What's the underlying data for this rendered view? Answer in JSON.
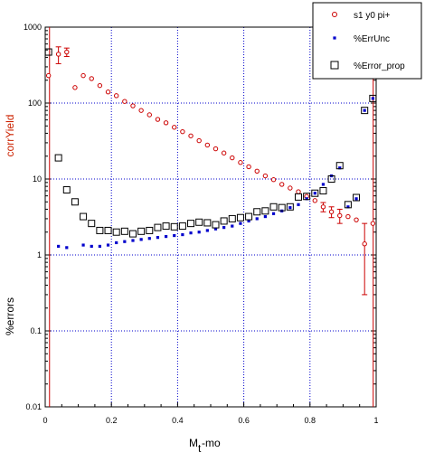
{
  "chart_data": {
    "type": "scatter",
    "xlabel": "M",
    "xlabel_sub": "t",
    "xlabel_suffix": "-mo",
    "ylabel_top": "corrYield",
    "ylabel_bottom": "%errors",
    "xlim": [
      0,
      1
    ],
    "ylim": [
      0.01,
      1000
    ],
    "yscale": "log",
    "grid": true,
    "legend_position": "top-right",
    "x_ticks": [
      "0",
      "0.2",
      "0.4",
      "0.6",
      "0.8",
      "1"
    ],
    "x_tick_values": [
      0,
      0.2,
      0.4,
      0.6,
      0.8,
      1
    ],
    "y_ticks": [
      "0.01",
      "0.1",
      "1",
      "10",
      "100",
      "1000"
    ],
    "y_tick_values": [
      0.01,
      0.1,
      1,
      10,
      100,
      1000
    ],
    "colors": {
      "grid": "#0000cc",
      "yield": "#cc0000",
      "errunc": "#0000cc",
      "errprop": "#000000"
    },
    "series": [
      {
        "name": "s1 y0 pi+",
        "marker": "open-circle",
        "color": "#cc0000",
        "x": [
          0.01,
          0.04,
          0.065,
          0.09,
          0.115,
          0.14,
          0.165,
          0.19,
          0.215,
          0.24,
          0.265,
          0.29,
          0.315,
          0.34,
          0.365,
          0.39,
          0.415,
          0.44,
          0.465,
          0.49,
          0.515,
          0.54,
          0.565,
          0.59,
          0.615,
          0.64,
          0.665,
          0.69,
          0.715,
          0.74,
          0.765,
          0.79,
          0.815,
          0.84,
          0.865,
          0.89,
          0.915,
          0.94,
          0.965,
          0.99
        ],
        "y": [
          230,
          440,
          470,
          160,
          230,
          210,
          170,
          140,
          125,
          105,
          92,
          80,
          70,
          61,
          55,
          48,
          42,
          37,
          32,
          28,
          25,
          22,
          19,
          16.5,
          14.5,
          12.7,
          11,
          9.8,
          8.5,
          7.6,
          6.8,
          5.9,
          5.2,
          4.3,
          3.7,
          3.3,
          3.2,
          2.9,
          1.4,
          2.6
        ],
        "err_lo": [
          0,
          110,
          60,
          0,
          0,
          0,
          0,
          0,
          0,
          0,
          0,
          0,
          0,
          0,
          0,
          0,
          0,
          0,
          0,
          0,
          0,
          0,
          0,
          0,
          0,
          0,
          0,
          0,
          0,
          0,
          0,
          0,
          0,
          0.6,
          0.6,
          0.7,
          0,
          0,
          1.1,
          0
        ],
        "err_hi": [
          0,
          110,
          60,
          0,
          0,
          0,
          0,
          0,
          0,
          0,
          0,
          0,
          0,
          0,
          0,
          0,
          0,
          0,
          0,
          0,
          0,
          0,
          0,
          0,
          0,
          0,
          0,
          0,
          0,
          0,
          0,
          0,
          0,
          0.6,
          0.6,
          0.7,
          0,
          0,
          1.2,
          0
        ]
      },
      {
        "name": "%ErrUnc",
        "marker": "filled-square",
        "color": "#0000cc",
        "x": [
          0.04,
          0.065,
          0.115,
          0.14,
          0.165,
          0.19,
          0.215,
          0.24,
          0.265,
          0.29,
          0.315,
          0.34,
          0.365,
          0.39,
          0.415,
          0.44,
          0.465,
          0.49,
          0.515,
          0.54,
          0.565,
          0.59,
          0.615,
          0.64,
          0.665,
          0.69,
          0.715,
          0.74,
          0.765,
          0.79,
          0.815,
          0.84,
          0.865,
          0.89,
          0.915,
          0.94,
          0.965,
          0.99
        ],
        "y": [
          1.3,
          1.25,
          1.35,
          1.3,
          1.3,
          1.35,
          1.45,
          1.5,
          1.55,
          1.6,
          1.65,
          1.7,
          1.75,
          1.8,
          1.85,
          1.95,
          2.0,
          2.1,
          2.2,
          2.3,
          2.4,
          2.6,
          2.8,
          3.0,
          3.2,
          3.5,
          3.8,
          4.2,
          4.6,
          5.5,
          6.5,
          8.5,
          11,
          14,
          4.3,
          5.5,
          80,
          115
        ]
      },
      {
        "name": "%Error_prop",
        "marker": "open-square",
        "color": "#000000",
        "x": [
          0.01,
          0.04,
          0.065,
          0.09,
          0.115,
          0.14,
          0.165,
          0.19,
          0.215,
          0.24,
          0.265,
          0.29,
          0.315,
          0.34,
          0.365,
          0.39,
          0.415,
          0.44,
          0.465,
          0.49,
          0.515,
          0.54,
          0.565,
          0.59,
          0.615,
          0.64,
          0.665,
          0.69,
          0.715,
          0.74,
          0.765,
          0.79,
          0.815,
          0.84,
          0.865,
          0.89,
          0.915,
          0.94,
          0.965,
          0.99
        ],
        "y": [
          470,
          19,
          7.2,
          5.0,
          3.2,
          2.6,
          2.1,
          2.1,
          2.0,
          2.05,
          1.9,
          2.05,
          2.1,
          2.3,
          2.4,
          2.35,
          2.4,
          2.6,
          2.7,
          2.65,
          2.5,
          2.8,
          3.0,
          3.1,
          3.2,
          3.7,
          3.8,
          4.3,
          4.2,
          4.3,
          5.8,
          5.9,
          6.5,
          7.0,
          10,
          15,
          4.6,
          5.7,
          80,
          115
        ]
      }
    ]
  }
}
